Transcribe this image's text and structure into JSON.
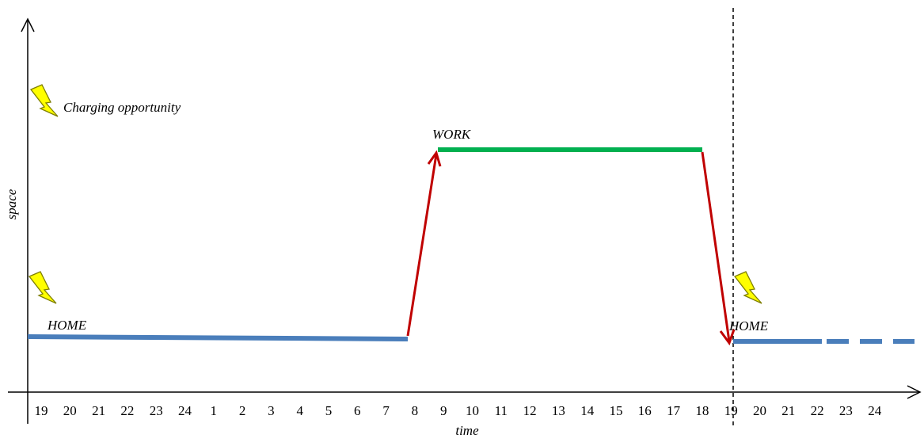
{
  "axes": {
    "x_label": "time",
    "y_label": "space",
    "ticks": [
      "19",
      "20",
      "21",
      "22",
      "23",
      "24",
      "1",
      "2",
      "3",
      "4",
      "5",
      "6",
      "7",
      "8",
      "9",
      "10",
      "11",
      "12",
      "13",
      "14",
      "15",
      "16",
      "17",
      "18",
      "19",
      "20",
      "21",
      "22",
      "23",
      "24"
    ]
  },
  "labels": {
    "home_1": "HOME",
    "work": "WORK",
    "home_2": "HOME",
    "legend_text": "Charging opportunity"
  },
  "colors": {
    "home_line": "#4a7ebb",
    "work_line": "#00b050",
    "trip_arrow": "#c00000",
    "lightning_fill": "#ffff00",
    "lightning_stroke": "#7f7f00"
  },
  "icons": {
    "legend": "lightning-icon",
    "home_charging": "lightning-icon",
    "home_return_charging": "lightning-icon"
  }
}
